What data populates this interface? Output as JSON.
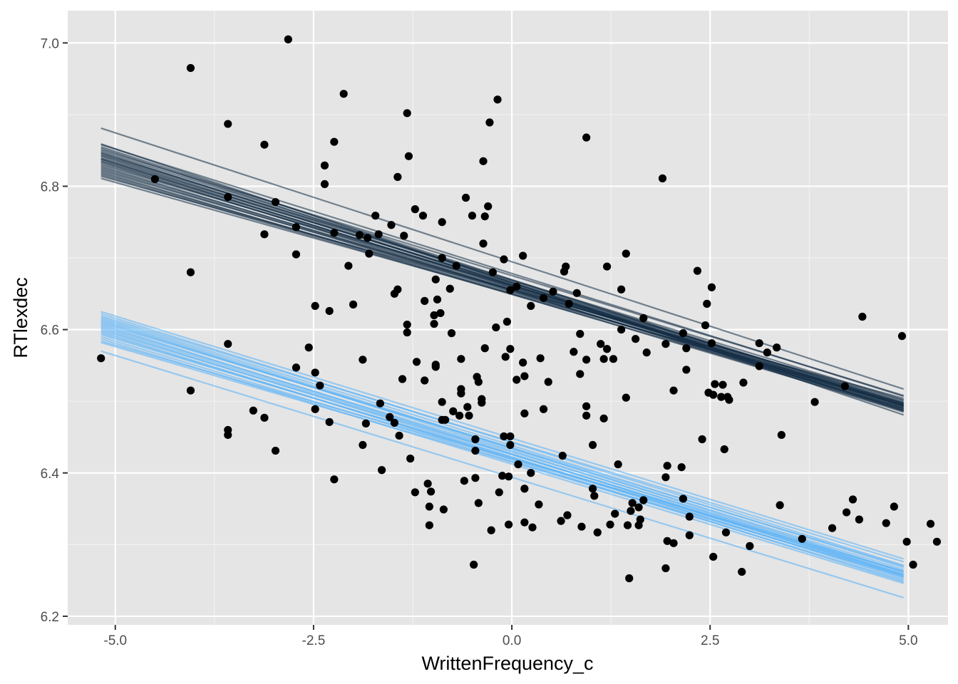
{
  "chart_data": {
    "type": "scatter",
    "xlabel": "WrittenFrequency_c",
    "ylabel": "RTlexdec",
    "xlim": [
      -5.6,
      5.5
    ],
    "ylim": [
      6.188,
      7.045
    ],
    "x_ticks": [
      -5.0,
      -2.5,
      0.0,
      2.5,
      5.0
    ],
    "x_tick_labels": [
      "-5.0",
      "-2.5",
      "0.0",
      "2.5",
      "5.0"
    ],
    "y_ticks": [
      6.2,
      6.4,
      6.6,
      6.8,
      7.0
    ],
    "y_tick_labels": [
      "6.2",
      "6.4",
      "6.6",
      "6.8",
      "7.0"
    ],
    "grid": true,
    "panel_background": "#e5e5e5",
    "points": {
      "color": "#000000",
      "xy": [
        [
          -5.18,
          6.56
        ],
        [
          -4.5,
          6.81
        ],
        [
          -4.05,
          6.965
        ],
        [
          -4.05,
          6.68
        ],
        [
          -4.05,
          6.515
        ],
        [
          -3.58,
          6.887
        ],
        [
          -3.58,
          6.785
        ],
        [
          -3.58,
          6.58
        ],
        [
          -3.58,
          6.46
        ],
        [
          -3.58,
          6.453
        ],
        [
          -3.26,
          6.487
        ],
        [
          -3.12,
          6.858
        ],
        [
          -3.12,
          6.733
        ],
        [
          -3.12,
          6.477
        ],
        [
          -2.98,
          6.778
        ],
        [
          -2.98,
          6.431
        ],
        [
          -2.82,
          7.005
        ],
        [
          -2.72,
          6.743
        ],
        [
          -2.72,
          6.705
        ],
        [
          -2.72,
          6.547
        ],
        [
          -2.56,
          6.575
        ],
        [
          -2.48,
          6.633
        ],
        [
          -2.48,
          6.54
        ],
        [
          -2.48,
          6.489
        ],
        [
          -2.42,
          6.522
        ],
        [
          -2.36,
          6.829
        ],
        [
          -2.36,
          6.803
        ],
        [
          -2.3,
          6.626
        ],
        [
          -2.3,
          6.471
        ],
        [
          -2.24,
          6.862
        ],
        [
          -2.24,
          6.735
        ],
        [
          -2.24,
          6.391
        ],
        [
          -2.12,
          6.929
        ],
        [
          -2.06,
          6.689
        ],
        [
          -2.0,
          6.635
        ],
        [
          -1.92,
          6.732
        ],
        [
          -1.88,
          6.558
        ],
        [
          -1.88,
          6.439
        ],
        [
          -1.84,
          6.469
        ],
        [
          -1.82,
          6.728
        ],
        [
          -1.8,
          6.706
        ],
        [
          -1.72,
          6.759
        ],
        [
          -1.68,
          6.733
        ],
        [
          -1.66,
          6.497
        ],
        [
          -1.64,
          6.404
        ],
        [
          -1.54,
          6.478
        ],
        [
          -1.52,
          6.746
        ],
        [
          -1.48,
          6.65
        ],
        [
          -1.48,
          6.47
        ],
        [
          -1.44,
          6.813
        ],
        [
          -1.44,
          6.656
        ],
        [
          -1.42,
          6.452
        ],
        [
          -1.38,
          6.531
        ],
        [
          -1.36,
          6.731
        ],
        [
          -1.32,
          6.902
        ],
        [
          -1.32,
          6.607
        ],
        [
          -1.32,
          6.596
        ],
        [
          -1.3,
          6.842
        ],
        [
          -1.28,
          6.42
        ],
        [
          -1.22,
          6.768
        ],
        [
          -1.22,
          6.373
        ],
        [
          -1.2,
          6.555
        ],
        [
          -1.12,
          6.759
        ],
        [
          -1.1,
          6.64
        ],
        [
          -1.1,
          6.529
        ],
        [
          -1.06,
          6.385
        ],
        [
          -1.04,
          6.353
        ],
        [
          -1.04,
          6.327
        ],
        [
          -1.02,
          6.374
        ],
        [
          -0.98,
          6.62
        ],
        [
          -0.98,
          6.608
        ],
        [
          -0.96,
          6.67
        ],
        [
          -0.96,
          6.551
        ],
        [
          -0.96,
          6.548
        ],
        [
          -0.94,
          6.642
        ],
        [
          -0.9,
          6.623
        ],
        [
          -0.88,
          6.75
        ],
        [
          -0.88,
          6.7
        ],
        [
          -0.88,
          6.499
        ],
        [
          -0.88,
          6.474
        ],
        [
          -0.86,
          6.349
        ],
        [
          -0.84,
          6.474
        ],
        [
          -0.78,
          6.657
        ],
        [
          -0.76,
          6.595
        ],
        [
          -0.74,
          6.486
        ],
        [
          -0.7,
          6.689
        ],
        [
          -0.66,
          6.48
        ],
        [
          -0.64,
          6.559
        ],
        [
          -0.64,
          6.517
        ],
        [
          -0.64,
          6.511
        ],
        [
          -0.6,
          6.389
        ],
        [
          -0.58,
          6.784
        ],
        [
          -0.56,
          6.492
        ],
        [
          -0.54,
          6.48
        ],
        [
          -0.5,
          6.759
        ],
        [
          -0.48,
          6.272
        ],
        [
          -0.46,
          6.447
        ],
        [
          -0.46,
          6.431
        ],
        [
          -0.46,
          6.393
        ],
        [
          -0.44,
          6.534
        ],
        [
          -0.42,
          6.358
        ],
        [
          -0.42,
          6.527
        ],
        [
          -0.38,
          6.503
        ],
        [
          -0.38,
          6.498
        ],
        [
          -0.36,
          6.835
        ],
        [
          -0.36,
          6.72
        ],
        [
          -0.34,
          6.758
        ],
        [
          -0.34,
          6.574
        ],
        [
          -0.3,
          6.772
        ],
        [
          -0.28,
          6.889
        ],
        [
          -0.26,
          6.32
        ],
        [
          -0.24,
          6.68
        ],
        [
          -0.2,
          6.603
        ],
        [
          -0.18,
          6.921
        ],
        [
          -0.16,
          6.373
        ],
        [
          -0.12,
          6.396
        ],
        [
          -0.1,
          6.698
        ],
        [
          -0.1,
          6.451
        ],
        [
          -0.08,
          6.562
        ],
        [
          -0.06,
          6.611
        ],
        [
          -0.04,
          6.328
        ],
        [
          -0.04,
          6.395
        ],
        [
          -0.02,
          6.451
        ],
        [
          -0.02,
          6.655
        ],
        [
          -0.02,
          6.573
        ],
        [
          -0.02,
          6.439
        ],
        [
          0.06,
          6.66
        ],
        [
          0.06,
          6.53
        ],
        [
          0.08,
          6.412
        ],
        [
          0.14,
          6.703
        ],
        [
          0.14,
          6.554
        ],
        [
          0.16,
          6.535
        ],
        [
          0.16,
          6.483
        ],
        [
          0.16,
          6.331
        ],
        [
          0.16,
          6.378
        ],
        [
          0.24,
          6.633
        ],
        [
          0.24,
          6.4
        ],
        [
          0.26,
          6.324
        ],
        [
          0.34,
          6.356
        ],
        [
          0.36,
          6.56
        ],
        [
          0.4,
          6.489
        ],
        [
          0.4,
          6.644
        ],
        [
          0.46,
          6.527
        ],
        [
          0.52,
          6.653
        ],
        [
          0.62,
          6.333
        ],
        [
          0.64,
          6.424
        ],
        [
          0.66,
          6.681
        ],
        [
          0.68,
          6.688
        ],
        [
          0.7,
          6.341
        ],
        [
          0.72,
          6.636
        ],
        [
          0.78,
          6.569
        ],
        [
          0.82,
          6.651
        ],
        [
          0.86,
          6.538
        ],
        [
          0.86,
          6.594
        ],
        [
          0.88,
          6.325
        ],
        [
          0.94,
          6.868
        ],
        [
          0.94,
          6.558
        ],
        [
          0.94,
          6.493
        ],
        [
          0.94,
          6.48
        ],
        [
          1.02,
          6.439
        ],
        [
          1.02,
          6.378
        ],
        [
          1.04,
          6.368
        ],
        [
          1.08,
          6.317
        ],
        [
          1.12,
          6.58
        ],
        [
          1.16,
          6.476
        ],
        [
          1.16,
          6.559
        ],
        [
          1.2,
          6.688
        ],
        [
          1.2,
          6.573
        ],
        [
          1.24,
          6.328
        ],
        [
          1.28,
          6.559
        ],
        [
          1.3,
          6.343
        ],
        [
          1.34,
          6.412
        ],
        [
          1.38,
          6.6
        ],
        [
          1.38,
          6.656
        ],
        [
          1.44,
          6.505
        ],
        [
          1.44,
          6.706
        ],
        [
          1.46,
          6.327
        ],
        [
          1.48,
          6.253
        ],
        [
          1.5,
          6.347
        ],
        [
          1.52,
          6.358
        ],
        [
          1.56,
          6.587
        ],
        [
          1.6,
          6.327
        ],
        [
          1.6,
          6.352
        ],
        [
          1.62,
          6.335
        ],
        [
          1.66,
          6.362
        ],
        [
          1.66,
          6.616
        ],
        [
          1.7,
          6.568
        ],
        [
          1.9,
          6.811
        ],
        [
          1.94,
          6.58
        ],
        [
          1.94,
          6.394
        ],
        [
          1.94,
          6.267
        ],
        [
          1.96,
          6.305
        ],
        [
          1.96,
          6.41
        ],
        [
          2.04,
          6.515
        ],
        [
          2.04,
          6.302
        ],
        [
          2.14,
          6.408
        ],
        [
          2.16,
          6.595
        ],
        [
          2.16,
          6.364
        ],
        [
          2.2,
          6.544
        ],
        [
          2.2,
          6.574
        ],
        [
          2.24,
          6.339
        ],
        [
          2.24,
          6.313
        ],
        [
          2.34,
          6.682
        ],
        [
          2.4,
          6.447
        ],
        [
          2.44,
          6.606
        ],
        [
          2.46,
          6.636
        ],
        [
          2.48,
          6.512
        ],
        [
          2.52,
          6.581
        ],
        [
          2.52,
          6.659
        ],
        [
          2.54,
          6.509
        ],
        [
          2.54,
          6.283
        ],
        [
          2.56,
          6.524
        ],
        [
          2.64,
          6.506
        ],
        [
          2.66,
          6.523
        ],
        [
          2.68,
          6.433
        ],
        [
          2.7,
          6.317
        ],
        [
          2.72,
          6.506
        ],
        [
          2.74,
          6.502
        ],
        [
          2.9,
          6.262
        ],
        [
          2.92,
          6.526
        ],
        [
          3.0,
          6.298
        ],
        [
          3.12,
          6.581
        ],
        [
          3.12,
          6.549
        ],
        [
          3.22,
          6.568
        ],
        [
          3.34,
          6.575
        ],
        [
          3.38,
          6.355
        ],
        [
          3.4,
          6.453
        ],
        [
          3.66,
          6.308
        ],
        [
          3.82,
          6.499
        ],
        [
          4.04,
          6.323
        ],
        [
          4.2,
          6.521
        ],
        [
          4.22,
          6.345
        ],
        [
          4.3,
          6.363
        ],
        [
          4.38,
          6.335
        ],
        [
          4.42,
          6.618
        ],
        [
          4.72,
          6.33
        ],
        [
          4.82,
          6.353
        ],
        [
          4.92,
          6.591
        ],
        [
          4.98,
          6.304
        ],
        [
          5.06,
          6.272
        ],
        [
          5.28,
          6.329
        ],
        [
          5.36,
          6.304
        ]
      ]
    },
    "line_groups": [
      {
        "color": "#132b43",
        "x_range": [
          -5.18,
          4.94
        ],
        "lines": [
          [
            6.881,
            6.517
          ],
          [
            6.859,
            6.481
          ],
          [
            6.858,
            6.507
          ],
          [
            6.855,
            6.493
          ],
          [
            6.853,
            6.487
          ],
          [
            6.851,
            6.508
          ],
          [
            6.849,
            6.497
          ],
          [
            6.847,
            6.486
          ],
          [
            6.846,
            6.496
          ],
          [
            6.844,
            6.502
          ],
          [
            6.843,
            6.49
          ],
          [
            6.841,
            6.494
          ],
          [
            6.839,
            6.499
          ],
          [
            6.838,
            6.488
          ],
          [
            6.837,
            6.492
          ],
          [
            6.835,
            6.495
          ],
          [
            6.834,
            6.485
          ],
          [
            6.832,
            6.493
          ],
          [
            6.83,
            6.501
          ],
          [
            6.828,
            6.489
          ],
          [
            6.826,
            6.495
          ],
          [
            6.824,
            6.491
          ],
          [
            6.822,
            6.498
          ],
          [
            6.82,
            6.487
          ],
          [
            6.818,
            6.494
          ],
          [
            6.816,
            6.49
          ],
          [
            6.814,
            6.504
          ],
          [
            6.811,
            6.497
          ]
        ]
      },
      {
        "color": "#56b1f7",
        "x_range": [
          -5.18,
          4.94
        ],
        "lines": [
          [
            6.625,
            6.28
          ],
          [
            6.622,
            6.271
          ],
          [
            6.619,
            6.276
          ],
          [
            6.617,
            6.268
          ],
          [
            6.615,
            6.262
          ],
          [
            6.613,
            6.258
          ],
          [
            6.611,
            6.265
          ],
          [
            6.609,
            6.27
          ],
          [
            6.607,
            6.255
          ],
          [
            6.605,
            6.262
          ],
          [
            6.603,
            6.257
          ],
          [
            6.601,
            6.252
          ],
          [
            6.599,
            6.26
          ],
          [
            6.597,
            6.248
          ],
          [
            6.595,
            6.254
          ],
          [
            6.593,
            6.258
          ],
          [
            6.59,
            6.25
          ],
          [
            6.587,
            6.246
          ],
          [
            6.584,
            6.263
          ],
          [
            6.582,
            6.256
          ],
          [
            6.57,
            6.226
          ]
        ]
      }
    ]
  }
}
